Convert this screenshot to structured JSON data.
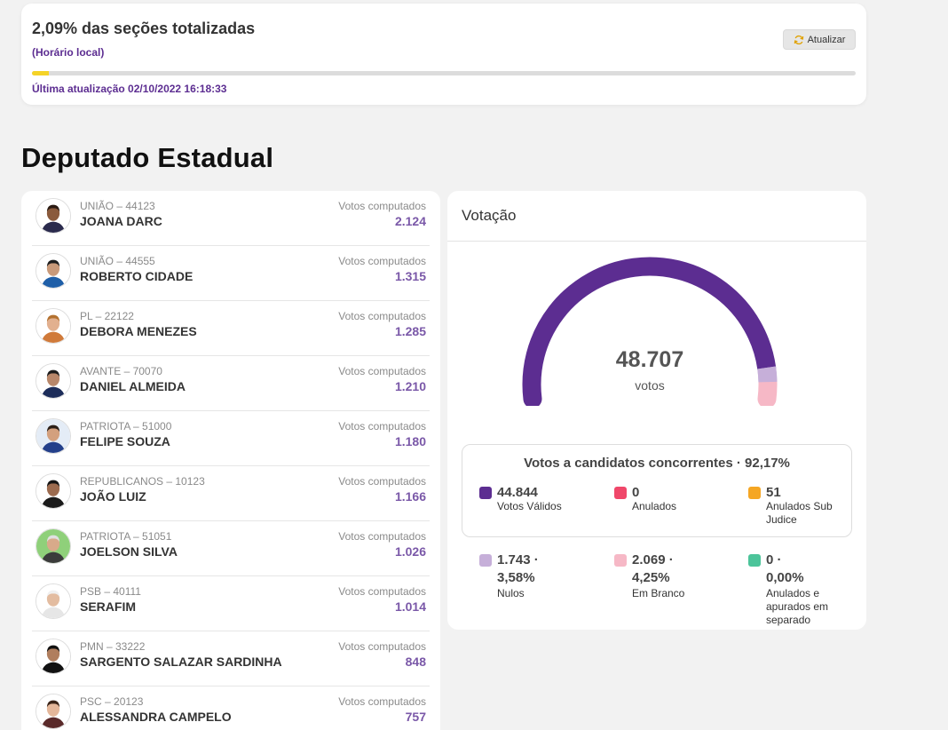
{
  "progress": {
    "title": "2,09% das seções totalizadas",
    "subtitle": "(Horário local)",
    "refresh_label": "Atualizar",
    "percent": 2.09,
    "updated": "Última atualização 02/10/2022 16:18:33"
  },
  "section": {
    "title": "Deputado Estadual"
  },
  "candidates": [
    {
      "party": "UNIÃO – 44123",
      "name": "JOANA DARC",
      "votes_label": "Votos computados",
      "votes": "2.124"
    },
    {
      "party": "UNIÃO – 44555",
      "name": "ROBERTO CIDADE",
      "votes_label": "Votos computados",
      "votes": "1.315"
    },
    {
      "party": "PL – 22122",
      "name": "DEBORA MENEZES",
      "votes_label": "Votos computados",
      "votes": "1.285"
    },
    {
      "party": "AVANTE – 70070",
      "name": "DANIEL ALMEIDA",
      "votes_label": "Votos computados",
      "votes": "1.210"
    },
    {
      "party": "PATRIOTA – 51000",
      "name": "FELIPE SOUZA",
      "votes_label": "Votos computados",
      "votes": "1.180"
    },
    {
      "party": "REPUBLICANOS – 10123",
      "name": "JOÃO LUIZ",
      "votes_label": "Votos computados",
      "votes": "1.166"
    },
    {
      "party": "PATRIOTA – 51051",
      "name": "JOELSON SILVA",
      "votes_label": "Votos computados",
      "votes": "1.026"
    },
    {
      "party": "PSB – 40111",
      "name": "SERAFIM",
      "votes_label": "Votos computados",
      "votes": "1.014"
    },
    {
      "party": "PMN – 33222",
      "name": "SARGENTO SALAZAR SARDINHA",
      "votes_label": "Votos computados",
      "votes": "848"
    },
    {
      "party": "PSC – 20123",
      "name": "ALESSANDRA CAMPELO",
      "votes_label": "Votos computados",
      "votes": "757"
    }
  ],
  "votacao": {
    "title": "Votação",
    "total": "48.707",
    "total_unit": "votos",
    "gauge_segments": [
      {
        "label": "Votos Válidos",
        "value": 44844,
        "color": "#5c2d91"
      },
      {
        "label": "Nulos",
        "value": 1743,
        "color": "#c6afd9"
      },
      {
        "label": "Em Branco",
        "value": 2069,
        "color": "#f6b8c6"
      }
    ],
    "concorrentes_title": "Votos a candidatos concorrentes · 92,17%",
    "stats": [
      {
        "value": "44.844",
        "label": "Votos Válidos",
        "color": "#5c2d91"
      },
      {
        "value": "0",
        "label": "Anulados",
        "color": "#f0476a"
      },
      {
        "value": "51",
        "label": "Anulados Sub Judice",
        "color": "#f5a623"
      },
      {
        "value": "1.743 · 3,58%",
        "label": "Nulos",
        "color": "#c6afd9"
      },
      {
        "value": "2.069 · 4,25%",
        "label": "Em Branco",
        "color": "#f6b8c6"
      },
      {
        "value": "0 · 0,00%",
        "label": "Anulados e apurados em separado",
        "color": "#4cc49a"
      }
    ]
  }
}
